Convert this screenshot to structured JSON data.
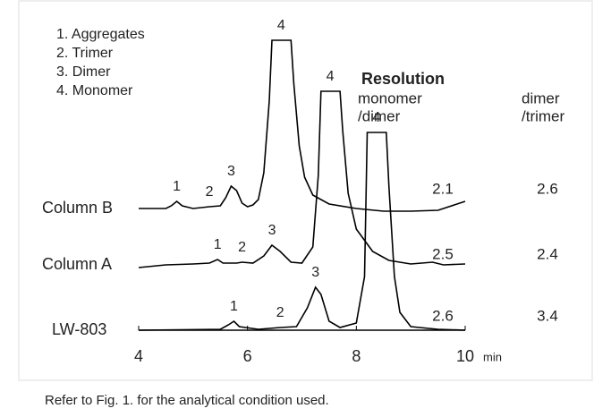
{
  "chart_data": {
    "type": "line",
    "legend_items": [
      "1. Aggregates",
      "2. Trimer",
      "3. Dimer",
      "4. Monomer"
    ],
    "xlim": [
      4,
      10
    ],
    "xticks": [
      4,
      6,
      8,
      10
    ],
    "x_unit": "min",
    "series": [
      {
        "name": "Column B",
        "color": "#000000",
        "x": [
          4.0,
          4.5,
          4.6,
          4.7,
          4.8,
          5.0,
          5.3,
          5.5,
          5.6,
          5.7,
          5.8,
          5.9,
          6.0,
          6.1,
          6.2,
          6.3,
          6.4,
          6.45,
          6.8,
          6.85,
          6.95,
          7.05,
          7.2,
          7.5,
          8.0,
          8.5,
          9.0,
          9.5,
          10.0
        ],
        "values": [
          0,
          0,
          3,
          8,
          3,
          0,
          2,
          3,
          12,
          25,
          20,
          6,
          2,
          4,
          10,
          40,
          120,
          188,
          188,
          140,
          70,
          35,
          15,
          5,
          0,
          -3,
          -3,
          -2,
          8
        ],
        "peaks": [
          {
            "label": "1",
            "x": 4.7
          },
          {
            "label": "2",
            "x": 5.3
          },
          {
            "label": "3",
            "x": 5.7
          },
          {
            "label": "4",
            "x": 6.62
          }
        ]
      },
      {
        "name": "Column A",
        "color": "#000000",
        "x": [
          4.0,
          4.5,
          5.0,
          5.3,
          5.45,
          5.55,
          5.8,
          5.9,
          6.1,
          6.3,
          6.45,
          6.6,
          6.8,
          7.0,
          7.2,
          7.3,
          7.35,
          7.7,
          7.75,
          7.85,
          8.0,
          8.3,
          8.6,
          9.0,
          9.4,
          9.6,
          10.0
        ],
        "values": [
          -3,
          0,
          1,
          2,
          6,
          2,
          2,
          3,
          2,
          10,
          22,
          15,
          3,
          2,
          20,
          100,
          194,
          194,
          150,
          80,
          40,
          15,
          5,
          1,
          3,
          0,
          1
        ],
        "peaks": [
          {
            "label": "1",
            "x": 5.45
          },
          {
            "label": "2",
            "x": 5.9
          },
          {
            "label": "3",
            "x": 6.45
          },
          {
            "label": "4",
            "x": 7.52
          }
        ]
      },
      {
        "name": "LW-803",
        "color": "#000000",
        "x": [
          4.0,
          5.5,
          5.65,
          5.75,
          5.85,
          6.2,
          6.6,
          6.9,
          7.1,
          7.25,
          7.35,
          7.5,
          7.7,
          8.0,
          8.15,
          8.2,
          8.55,
          8.6,
          8.7,
          8.8,
          9.0,
          9.5,
          10.0
        ],
        "values": [
          0,
          1,
          6,
          10,
          4,
          1,
          3,
          4,
          25,
          48,
          40,
          10,
          3,
          8,
          60,
          221,
          221,
          160,
          60,
          20,
          4,
          1,
          0
        ],
        "peaks": [
          {
            "label": "1",
            "x": 5.75
          },
          {
            "label": "2",
            "x": 6.6
          },
          {
            "label": "3",
            "x": 7.25
          },
          {
            "label": "4",
            "x": 8.37
          }
        ]
      }
    ],
    "resolution": {
      "title": "Resolution",
      "columns": [
        {
          "header": [
            "monomer",
            "/dimer"
          ],
          "values": [
            2.1,
            2.5,
            2.6
          ]
        },
        {
          "header": [
            "dimer",
            "/trimer"
          ],
          "values": [
            2.6,
            2.4,
            3.4
          ]
        }
      ]
    },
    "footnote": "Refer to Fig. 1. for the analytical condition used."
  }
}
